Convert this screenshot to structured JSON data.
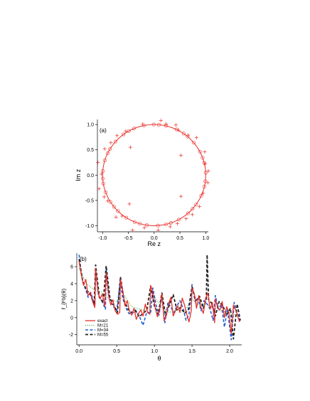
{
  "chart_data": [
    {
      "type": "scatter",
      "panel_label": "(a)",
      "xlabel": "Re z",
      "ylabel": "Im z",
      "xlim": [
        -1.1,
        1.05
      ],
      "ylim": [
        -1.12,
        1.1
      ],
      "xticks": [
        -1.0,
        -0.5,
        0.0,
        0.5,
        1.0
      ],
      "xtick_labels": [
        "-1.0",
        "-0.5",
        "0.0",
        "0.5",
        "1.0"
      ],
      "yticks": [
        1.0,
        0.5,
        0.0,
        -0.5,
        -1.0
      ],
      "ytick_labels": [
        "1.0",
        "0.5",
        "0.0",
        "-0.5",
        "-1.0"
      ],
      "color": "#e8302a",
      "unit_circle": true,
      "circle_markers_count": 40,
      "series": [
        {
          "marker": "plus",
          "points": [
            [
              0.13,
              1.08
            ],
            [
              0.42,
              0.99
            ],
            [
              -0.72,
              0.78
            ],
            [
              0.82,
              0.74
            ],
            [
              0.47,
              0.89
            ],
            [
              -0.46,
              0.55
            ],
            [
              0.52,
              0.39
            ],
            [
              -1.09,
              0.25
            ],
            [
              -1.07,
              -0.27
            ],
            [
              1.05,
              0.08
            ],
            [
              1.04,
              -0.15
            ],
            [
              -0.48,
              -0.57
            ],
            [
              0.52,
              -0.42
            ],
            [
              -0.74,
              -0.83
            ],
            [
              0.88,
              -0.62
            ],
            [
              -0.42,
              -1.09
            ],
            [
              0.08,
              -1.09
            ],
            [
              0.74,
              -0.78
            ],
            [
              0.45,
              -0.96
            ],
            [
              -0.97,
              -0.43
            ],
            [
              0.98,
              0.46
            ],
            [
              -0.96,
              0.52
            ],
            [
              0.23,
              1.01
            ],
            [
              -0.22,
              1.01
            ],
            [
              -0.55,
              0.87
            ],
            [
              0.31,
              -1.02
            ],
            [
              -0.19,
              -1.04
            ],
            [
              -0.62,
              -0.81
            ],
            [
              0.95,
              -0.36
            ],
            [
              -1.02,
              0.02
            ],
            [
              0.66,
              0.79
            ],
            [
              -0.84,
              0.64
            ],
            [
              0.99,
              0.22
            ],
            [
              -0.9,
              -0.51
            ],
            [
              0.62,
              -0.86
            ]
          ]
        }
      ]
    },
    {
      "type": "line",
      "panel_label": "(b)",
      "xlabel": "θ",
      "ylabel": "f_{Fb}(θ)",
      "xlim": [
        -0.03,
        2.16
      ],
      "ylim": [
        -3.2,
        7.6
      ],
      "xticks": [
        0.0,
        0.5,
        1.0,
        1.5,
        2.0
      ],
      "xtick_labels": [
        "0.0",
        "0.5",
        "1.0",
        "1.5",
        "2.0"
      ],
      "yticks": [
        6,
        4,
        2,
        0,
        -2
      ],
      "ytick_labels": [
        "6",
        "4",
        "2",
        "0",
        "-2"
      ],
      "legend_position": "bottom-left",
      "series": [
        {
          "name": "exact",
          "color": "#e8302a",
          "style": "solid",
          "x": [
            0.0,
            0.03,
            0.06,
            0.09,
            0.12,
            0.15,
            0.18,
            0.21,
            0.22,
            0.25,
            0.28,
            0.31,
            0.34,
            0.36,
            0.39,
            0.42,
            0.45,
            0.48,
            0.51,
            0.54,
            0.55,
            0.58,
            0.61,
            0.64,
            0.67,
            0.7,
            0.73,
            0.76,
            0.79,
            0.82,
            0.85,
            0.88,
            0.91,
            0.94,
            0.95,
            0.98,
            1.01,
            1.04,
            1.07,
            1.1,
            1.13,
            1.16,
            1.19,
            1.22,
            1.25,
            1.28,
            1.31,
            1.34,
            1.37,
            1.4,
            1.43,
            1.46,
            1.49,
            1.5,
            1.53,
            1.56,
            1.59,
            1.62,
            1.65,
            1.68,
            1.71,
            1.74,
            1.77,
            1.8,
            1.81,
            1.84,
            1.87,
            1.9,
            1.93,
            1.96,
            1.99,
            2.02,
            2.05,
            2.07,
            2.1,
            2.13
          ],
          "y": [
            6.6,
            5.0,
            3.8,
            4.5,
            2.6,
            3.0,
            1.9,
            1.2,
            5.8,
            3.1,
            2.2,
            2.8,
            1.3,
            5.3,
            2.7,
            1.5,
            2.1,
            0.8,
            0.4,
            0.6,
            4.5,
            3.2,
            1.4,
            2.0,
            0.7,
            0.3,
            1.1,
            -0.2,
            0.5,
            0.9,
            0.2,
            1.6,
            0.6,
            0.4,
            3.8,
            3.0,
            1.2,
            0.1,
            0.9,
            2.8,
            -0.4,
            0.3,
            1.7,
            2.4,
            0.2,
            0.8,
            1.4,
            0.6,
            2.3,
            1.5,
            0.4,
            -0.5,
            0.8,
            3.5,
            2.8,
            1.1,
            2.6,
            1.2,
            0.5,
            2.3,
            2.9,
            1.0,
            1.8,
            -0.6,
            2.2,
            1.2,
            0.9,
            1.9,
            0.0,
            1.3,
            0.6,
            -1.9,
            1.5,
            1.1,
            0.4,
            -0.5
          ]
        },
        {
          "name": "M=21",
          "color": "#33aa33",
          "style": "dotted",
          "x": [
            0.0,
            0.1,
            0.2,
            0.3,
            0.4,
            0.5,
            0.6,
            0.7,
            0.8,
            0.9,
            1.0,
            1.1,
            1.2,
            1.3,
            1.4,
            1.5,
            1.6,
            1.7,
            1.8,
            1.9,
            2.0,
            2.1
          ],
          "y": [
            5.8,
            4.0,
            3.3,
            3.0,
            2.2,
            1.9,
            2.6,
            1.3,
            1.0,
            0.8,
            2.4,
            1.2,
            0.6,
            1.0,
            0.7,
            2.2,
            1.4,
            1.6,
            0.9,
            0.8,
            0.6,
            0.2
          ]
        },
        {
          "name": "M=34",
          "color": "#1f5fd6",
          "style": "dashed",
          "x": [
            0.0,
            0.04,
            0.08,
            0.12,
            0.16,
            0.21,
            0.22,
            0.26,
            0.3,
            0.35,
            0.36,
            0.4,
            0.45,
            0.5,
            0.55,
            0.58,
            0.62,
            0.66,
            0.7,
            0.75,
            0.8,
            0.85,
            0.9,
            0.95,
            0.98,
            1.02,
            1.06,
            1.1,
            1.14,
            1.18,
            1.22,
            1.26,
            1.3,
            1.34,
            1.38,
            1.42,
            1.46,
            1.5,
            1.54,
            1.58,
            1.62,
            1.66,
            1.7,
            1.74,
            1.78,
            1.81,
            1.85,
            1.89,
            1.93,
            1.97,
            2.02,
            2.06,
            2.1,
            2.14
          ],
          "y": [
            7.4,
            4.6,
            3.5,
            2.4,
            2.9,
            1.3,
            5.5,
            2.5,
            2.0,
            1.0,
            5.7,
            2.2,
            1.4,
            0.8,
            4.4,
            2.3,
            1.2,
            0.5,
            0.4,
            0.9,
            0.2,
            -0.9,
            0.7,
            0.5,
            3.5,
            1.6,
            0.3,
            2.5,
            -0.6,
            1.8,
            1.2,
            0.6,
            1.4,
            2.0,
            1.1,
            -0.3,
            0.4,
            3.9,
            1.9,
            2.3,
            0.8,
            2.0,
            1.6,
            1.0,
            -0.3,
            2.6,
            1.0,
            1.6,
            -1.1,
            1.0,
            -2.6,
            1.8,
            0.5,
            -0.4
          ]
        },
        {
          "name": "M=55",
          "color": "#222222",
          "style": "dashed",
          "x": [
            0.0,
            0.05,
            0.1,
            0.15,
            0.2,
            0.22,
            0.27,
            0.32,
            0.36,
            0.41,
            0.46,
            0.51,
            0.55,
            0.6,
            0.65,
            0.7,
            0.75,
            0.8,
            0.85,
            0.9,
            0.95,
            1.0,
            1.05,
            1.1,
            1.15,
            1.2,
            1.25,
            1.3,
            1.35,
            1.4,
            1.45,
            1.5,
            1.55,
            1.6,
            1.65,
            1.69,
            1.7,
            1.72,
            1.76,
            1.81,
            1.86,
            1.91,
            1.96,
            2.01,
            2.05,
            2.1,
            2.14
          ],
          "y": [
            6.9,
            4.2,
            3.2,
            2.8,
            1.5,
            6.2,
            2.4,
            1.8,
            6.1,
            2.3,
            1.5,
            0.6,
            4.8,
            2.0,
            1.0,
            0.6,
            0.8,
            0.1,
            0.5,
            0.9,
            3.7,
            1.4,
            0.4,
            2.9,
            0.2,
            1.6,
            2.7,
            0.9,
            1.2,
            0.5,
            0.9,
            3.6,
            2.0,
            2.5,
            1.1,
            2.2,
            7.4,
            2.1,
            1.7,
            0.2,
            1.9,
            1.4,
            0.3,
            1.1,
            -2.5,
            1.6,
            -0.3
          ]
        }
      ]
    }
  ]
}
